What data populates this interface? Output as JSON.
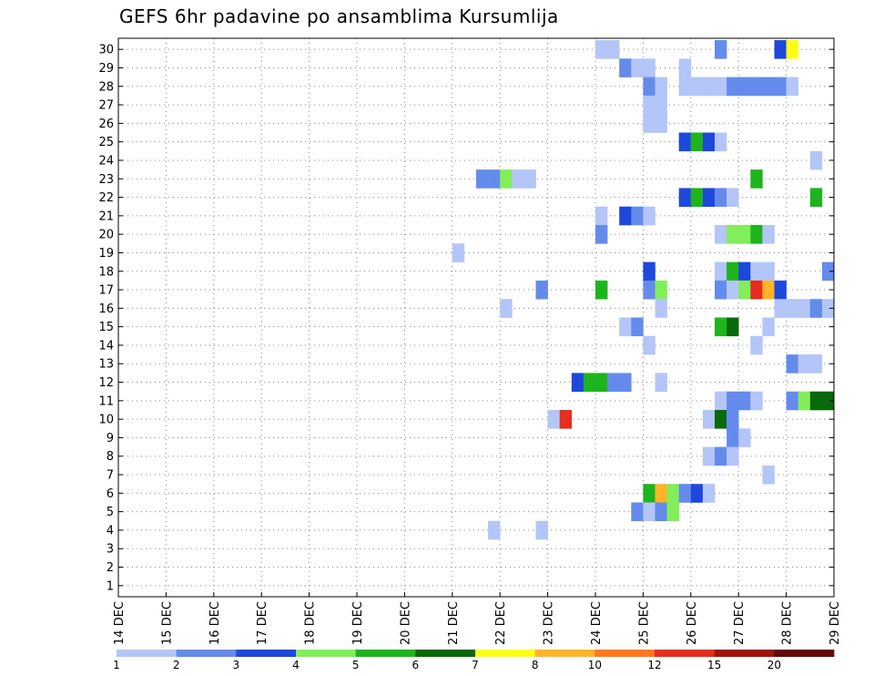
{
  "chart_data": {
    "type": "heatmap",
    "title": "GEFS 6hr padavine po ansamblima Kursumlija",
    "xlabel": "",
    "ylabel": "",
    "x_ticks": [
      "14 DEC",
      "15 DEC",
      "16 DEC",
      "17 DEC",
      "18 DEC",
      "19 DEC",
      "20 DEC",
      "21 DEC",
      "22 DEC",
      "23 DEC",
      "24 DEC",
      "25 DEC",
      "26 DEC",
      "27 DEC",
      "28 DEC",
      "29 DEC"
    ],
    "x_range_days": [
      14,
      29
    ],
    "y_ticks": [
      1,
      2,
      3,
      4,
      5,
      6,
      7,
      8,
      9,
      10,
      11,
      12,
      13,
      14,
      15,
      16,
      17,
      18,
      19,
      20,
      21,
      22,
      23,
      24,
      25,
      26,
      27,
      28,
      29,
      30
    ],
    "y_range": [
      0.4,
      30.6
    ],
    "grid": true,
    "legend": {
      "placement": "bottom",
      "colors": [
        "#b4c5f8",
        "#648bec",
        "#1e48dc",
        "#82ee5a",
        "#1eb41e",
        "#0a690a",
        "#ffff14",
        "#ffb428",
        "#ff781e",
        "#e62d1e",
        "#a0140a",
        "#640a0a"
      ],
      "labels": [
        "1",
        "2",
        "3",
        "4",
        "5",
        "6",
        "7",
        "8",
        "10",
        "12",
        "15",
        "20"
      ]
    },
    "cells": [
      {
        "member": 30,
        "day": 24.0,
        "value": 1
      },
      {
        "member": 30,
        "day": 24.25,
        "value": 1
      },
      {
        "member": 30,
        "day": 26.5,
        "value": 2
      },
      {
        "member": 30,
        "day": 27.75,
        "value": 3
      },
      {
        "member": 30,
        "day": 28.0,
        "value": 7
      },
      {
        "member": 29,
        "day": 24.5,
        "value": 2
      },
      {
        "member": 29,
        "day": 24.75,
        "value": 1
      },
      {
        "member": 29,
        "day": 25.0,
        "value": 1
      },
      {
        "member": 29,
        "day": 25.75,
        "value": 1
      },
      {
        "member": 28,
        "day": 25.0,
        "value": 2
      },
      {
        "member": 28,
        "day": 25.25,
        "value": 1
      },
      {
        "member": 28,
        "day": 25.75,
        "value": 1
      },
      {
        "member": 28,
        "day": 26.0,
        "value": 1
      },
      {
        "member": 28,
        "day": 26.25,
        "value": 1
      },
      {
        "member": 28,
        "day": 26.5,
        "value": 1
      },
      {
        "member": 28,
        "day": 26.75,
        "value": 2
      },
      {
        "member": 28,
        "day": 27.0,
        "value": 2
      },
      {
        "member": 28,
        "day": 27.25,
        "value": 2
      },
      {
        "member": 28,
        "day": 27.5,
        "value": 2
      },
      {
        "member": 28,
        "day": 27.75,
        "value": 2
      },
      {
        "member": 28,
        "day": 28.0,
        "value": 1
      },
      {
        "member": 27,
        "day": 25.0,
        "value": 1
      },
      {
        "member": 27,
        "day": 25.25,
        "value": 1
      },
      {
        "member": 26,
        "day": 25.0,
        "value": 1
      },
      {
        "member": 26,
        "day": 25.25,
        "value": 1
      },
      {
        "member": 25,
        "day": 25.75,
        "value": 3
      },
      {
        "member": 25,
        "day": 26.0,
        "value": 5
      },
      {
        "member": 25,
        "day": 26.25,
        "value": 3
      },
      {
        "member": 25,
        "day": 26.5,
        "value": 1
      },
      {
        "member": 24,
        "day": 28.5,
        "value": 1
      },
      {
        "member": 23,
        "day": 21.5,
        "value": 2
      },
      {
        "member": 23,
        "day": 21.75,
        "value": 2
      },
      {
        "member": 23,
        "day": 22.0,
        "value": 4
      },
      {
        "member": 23,
        "day": 22.25,
        "value": 1
      },
      {
        "member": 23,
        "day": 22.5,
        "value": 1
      },
      {
        "member": 23,
        "day": 27.25,
        "value": 5
      },
      {
        "member": 22,
        "day": 25.75,
        "value": 3
      },
      {
        "member": 22,
        "day": 26.0,
        "value": 5
      },
      {
        "member": 22,
        "day": 26.25,
        "value": 3
      },
      {
        "member": 22,
        "day": 26.5,
        "value": 2
      },
      {
        "member": 22,
        "day": 26.75,
        "value": 1
      },
      {
        "member": 22,
        "day": 28.5,
        "value": 5
      },
      {
        "member": 21,
        "day": 24.0,
        "value": 1
      },
      {
        "member": 20,
        "day": 24.0,
        "value": 2
      },
      {
        "member": 20,
        "day": 26.5,
        "value": 1
      },
      {
        "member": 20,
        "day": 26.75,
        "value": 4
      },
      {
        "member": 20,
        "day": 27.0,
        "value": 4
      },
      {
        "member": 20,
        "day": 27.25,
        "value": 5
      },
      {
        "member": 20,
        "day": 27.5,
        "value": 1
      },
      {
        "member": 21,
        "day": 24.5,
        "value": 3
      },
      {
        "member": 21,
        "day": 24.75,
        "value": 2
      },
      {
        "member": 21,
        "day": 25.0,
        "value": 1
      },
      {
        "member": 19,
        "day": 21.0,
        "value": 1
      },
      {
        "member": 18,
        "day": 25.0,
        "value": 3
      },
      {
        "member": 18,
        "day": 26.5,
        "value": 1
      },
      {
        "member": 18,
        "day": 26.75,
        "value": 5
      },
      {
        "member": 18,
        "day": 27.0,
        "value": 3
      },
      {
        "member": 18,
        "day": 27.25,
        "value": 1
      },
      {
        "member": 18,
        "day": 27.5,
        "value": 1
      },
      {
        "member": 18,
        "day": 28.75,
        "value": 2
      },
      {
        "member": 17,
        "day": 22.75,
        "value": 2
      },
      {
        "member": 17,
        "day": 24.0,
        "value": 5
      },
      {
        "member": 17,
        "day": 25.0,
        "value": 2
      },
      {
        "member": 17,
        "day": 25.25,
        "value": 4
      },
      {
        "member": 17,
        "day": 26.5,
        "value": 2
      },
      {
        "member": 17,
        "day": 26.75,
        "value": 1
      },
      {
        "member": 17,
        "day": 27.0,
        "value": 4
      },
      {
        "member": 17,
        "day": 27.25,
        "value": 10
      },
      {
        "member": 17,
        "day": 27.5,
        "value": 8
      },
      {
        "member": 17,
        "day": 27.75,
        "value": 3
      },
      {
        "member": 16,
        "day": 22.0,
        "value": 1
      },
      {
        "member": 16,
        "day": 25.25,
        "value": 1
      },
      {
        "member": 16,
        "day": 27.75,
        "value": 1
      },
      {
        "member": 16,
        "day": 28.0,
        "value": 1
      },
      {
        "member": 16,
        "day": 28.25,
        "value": 1
      },
      {
        "member": 16,
        "day": 28.5,
        "value": 2
      },
      {
        "member": 16,
        "day": 28.75,
        "value": 1
      },
      {
        "member": 15,
        "day": 24.5,
        "value": 1
      },
      {
        "member": 15,
        "day": 24.75,
        "value": 2
      },
      {
        "member": 15,
        "day": 26.5,
        "value": 5
      },
      {
        "member": 15,
        "day": 26.75,
        "value": 6
      },
      {
        "member": 15,
        "day": 27.5,
        "value": 1
      },
      {
        "member": 14,
        "day": 25.0,
        "value": 1
      },
      {
        "member": 14,
        "day": 27.25,
        "value": 1
      },
      {
        "member": 13,
        "day": 28.0,
        "value": 2
      },
      {
        "member": 13,
        "day": 28.25,
        "value": 1
      },
      {
        "member": 13,
        "day": 28.5,
        "value": 1
      },
      {
        "member": 12,
        "day": 23.5,
        "value": 3
      },
      {
        "member": 12,
        "day": 23.75,
        "value": 5
      },
      {
        "member": 12,
        "day": 24.0,
        "value": 5
      },
      {
        "member": 12,
        "day": 24.25,
        "value": 2
      },
      {
        "member": 12,
        "day": 24.5,
        "value": 2
      },
      {
        "member": 12,
        "day": 25.25,
        "value": 1
      },
      {
        "member": 11,
        "day": 26.5,
        "value": 1
      },
      {
        "member": 11,
        "day": 26.75,
        "value": 2
      },
      {
        "member": 11,
        "day": 27.0,
        "value": 2
      },
      {
        "member": 11,
        "day": 27.25,
        "value": 1
      },
      {
        "member": 11,
        "day": 28.0,
        "value": 2
      },
      {
        "member": 11,
        "day": 28.25,
        "value": 4
      },
      {
        "member": 11,
        "day": 28.5,
        "value": 6
      },
      {
        "member": 11,
        "day": 28.75,
        "value": 6
      },
      {
        "member": 10,
        "day": 23.0,
        "value": 1
      },
      {
        "member": 10,
        "day": 23.25,
        "value": 10
      },
      {
        "member": 10,
        "day": 26.25,
        "value": 1
      },
      {
        "member": 10,
        "day": 26.5,
        "value": 6
      },
      {
        "member": 10,
        "day": 26.75,
        "value": 2
      },
      {
        "member": 9,
        "day": 26.75,
        "value": 2
      },
      {
        "member": 9,
        "day": 27.0,
        "value": 1
      },
      {
        "member": 8,
        "day": 26.25,
        "value": 1
      },
      {
        "member": 8,
        "day": 26.5,
        "value": 2
      },
      {
        "member": 8,
        "day": 26.75,
        "value": 1
      },
      {
        "member": 7,
        "day": 27.5,
        "value": 1
      },
      {
        "member": 6,
        "day": 25.0,
        "value": 5
      },
      {
        "member": 6,
        "day": 25.25,
        "value": 8
      },
      {
        "member": 6,
        "day": 25.5,
        "value": 4
      },
      {
        "member": 6,
        "day": 25.75,
        "value": 2
      },
      {
        "member": 6,
        "day": 26.0,
        "value": 3
      },
      {
        "member": 6,
        "day": 26.25,
        "value": 1
      },
      {
        "member": 5,
        "day": 24.75,
        "value": 2
      },
      {
        "member": 5,
        "day": 25.0,
        "value": 1
      },
      {
        "member": 5,
        "day": 25.25,
        "value": 2
      },
      {
        "member": 5,
        "day": 25.5,
        "value": 4
      },
      {
        "member": 4,
        "day": 21.75,
        "value": 1
      },
      {
        "member": 4,
        "day": 22.75,
        "value": 1
      }
    ]
  }
}
